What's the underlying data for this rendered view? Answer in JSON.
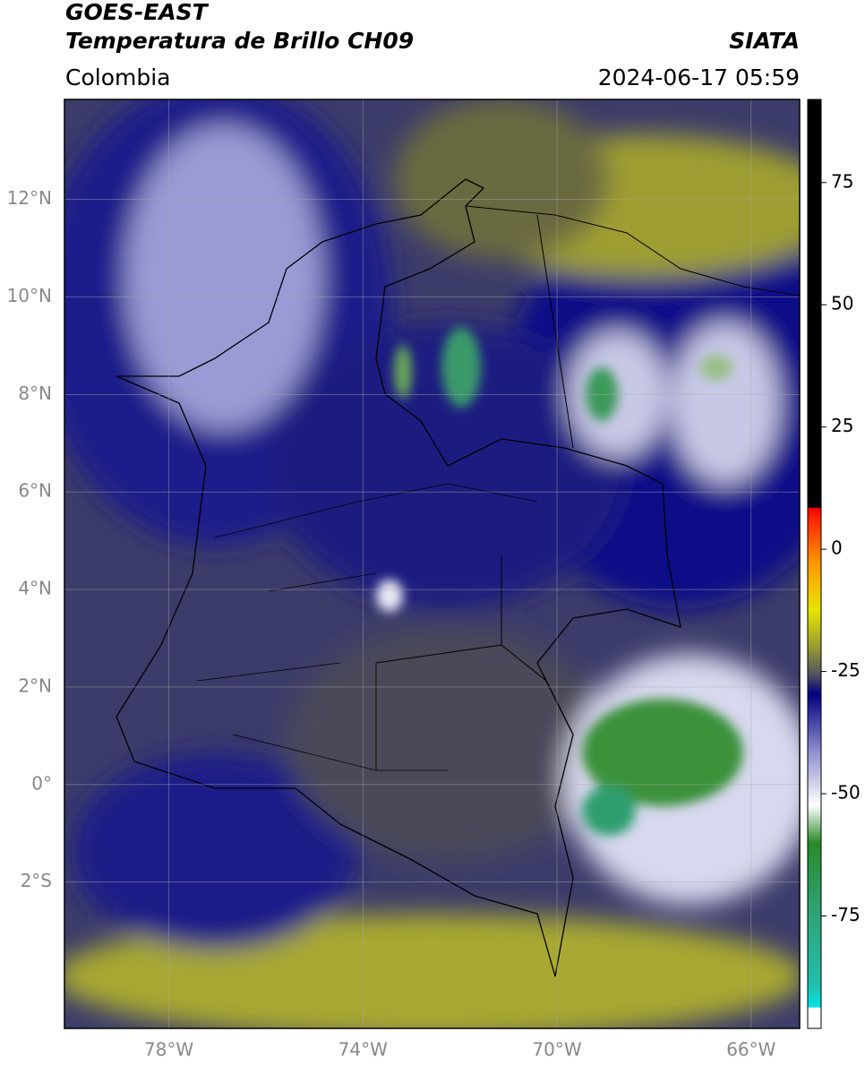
{
  "header": {
    "title": "GOES-EAST",
    "subtitle": "Temperatura de Brillo CH09",
    "source": "SIATA",
    "region": "Colombia",
    "datetime": "2024-06-17 05:59"
  },
  "map": {
    "lonlim": [
      -80.15,
      -65
    ],
    "latlim": [
      -5,
      14.05
    ],
    "lon_ticks": [
      {
        "value": -78,
        "label": "78°W"
      },
      {
        "value": -74,
        "label": "74°W"
      },
      {
        "value": -70,
        "label": "70°W"
      },
      {
        "value": -66,
        "label": "66°W"
      }
    ],
    "lat_ticks": [
      {
        "value": 12,
        "label": "12°N"
      },
      {
        "value": 10,
        "label": "10°N"
      },
      {
        "value": 8,
        "label": "8°N"
      },
      {
        "value": 6,
        "label": "6°N"
      },
      {
        "value": 4,
        "label": "4°N"
      },
      {
        "value": 2,
        "label": "2°N"
      },
      {
        "value": 0,
        "label": "0°"
      },
      {
        "value": -2,
        "label": "2°S"
      }
    ],
    "grid": true
  },
  "colorbar": {
    "lim": [
      -98,
      92
    ],
    "ticks": [
      75,
      50,
      25,
      0,
      -25,
      -50,
      -75
    ]
  }
}
